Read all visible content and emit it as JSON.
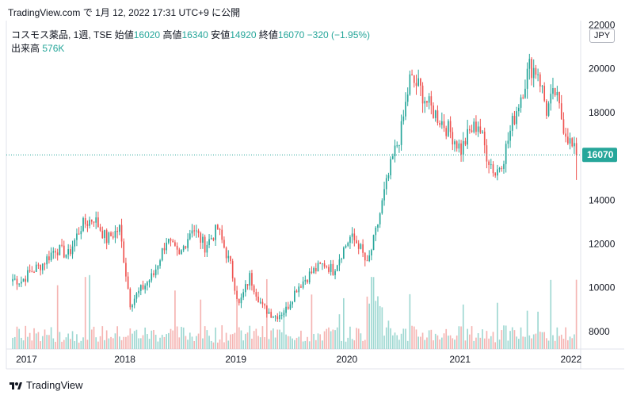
{
  "header": {
    "source": "TradingView.com",
    "date_text": "で 1月 12, 2022 17:31 UTC+9 に公開"
  },
  "legend": {
    "symbol": "コスモス薬品, 1週, TSE",
    "open_label": "始値",
    "open": "16020",
    "high_label": "高値",
    "high": "16340",
    "low_label": "安値",
    "low": "14920",
    "close_label": "終値",
    "close": "16070",
    "change": "−320 (−1.95%)"
  },
  "volume_legend": {
    "label": "出来高",
    "value": "576K"
  },
  "currency": "JPY",
  "footer": {
    "brand": "TradingView"
  },
  "colors": {
    "up": "#26a69a",
    "down": "#ef5350",
    "up_vol": "#9fd8d2",
    "down_vol": "#f5b4b2",
    "price_tag": "#26a69a"
  },
  "chart_data": {
    "type": "candlestick",
    "title": "コスモス薬品, 1週, TSE",
    "ylim": [
      7200,
      22200
    ],
    "y_ticks": [
      8000,
      10000,
      12000,
      14000,
      16000,
      18000,
      20000,
      22000
    ],
    "x_ticks": [
      {
        "label": "2017",
        "x": 0
      },
      {
        "label": "2018",
        "x": 52
      },
      {
        "label": "2019",
        "x": 104
      },
      {
        "label": "2020",
        "x": 156
      },
      {
        "label": "2021",
        "x": 209
      },
      {
        "label": "2022",
        "x": 261
      }
    ],
    "x_range": [
      -3,
      266
    ],
    "last_price": 16070,
    "anchors": [
      [
        0,
        10400
      ],
      [
        4,
        10300
      ],
      [
        8,
        10700
      ],
      [
        14,
        11100
      ],
      [
        20,
        11800
      ],
      [
        26,
        11500
      ],
      [
        32,
        12800
      ],
      [
        38,
        13200
      ],
      [
        44,
        12200
      ],
      [
        50,
        12700
      ],
      [
        55,
        9300
      ],
      [
        60,
        9900
      ],
      [
        66,
        10600
      ],
      [
        72,
        12200
      ],
      [
        78,
        11400
      ],
      [
        84,
        12800
      ],
      [
        90,
        11900
      ],
      [
        96,
        12700
      ],
      [
        102,
        11000
      ],
      [
        106,
        9200
      ],
      [
        111,
        10500
      ],
      [
        117,
        9100
      ],
      [
        123,
        8700
      ],
      [
        128,
        9000
      ],
      [
        133,
        10000
      ],
      [
        140,
        10700
      ],
      [
        146,
        11100
      ],
      [
        150,
        10800
      ],
      [
        154,
        11600
      ],
      [
        158,
        12300
      ],
      [
        162,
        12000
      ],
      [
        166,
        11000
      ],
      [
        170,
        12500
      ],
      [
        174,
        14300
      ],
      [
        178,
        15900
      ],
      [
        182,
        17200
      ],
      [
        186,
        19500
      ],
      [
        190,
        19200
      ],
      [
        195,
        18300
      ],
      [
        200,
        17700
      ],
      [
        205,
        17100
      ],
      [
        210,
        16300
      ],
      [
        214,
        17100
      ],
      [
        218,
        17500
      ],
      [
        222,
        16100
      ],
      [
        226,
        15200
      ],
      [
        230,
        16000
      ],
      [
        234,
        17500
      ],
      [
        238,
        18800
      ],
      [
        242,
        20100
      ],
      [
        246,
        19900
      ],
      [
        250,
        18100
      ],
      [
        254,
        18900
      ],
      [
        258,
        17400
      ],
      [
        262,
        16390
      ],
      [
        264,
        16070
      ]
    ]
  }
}
